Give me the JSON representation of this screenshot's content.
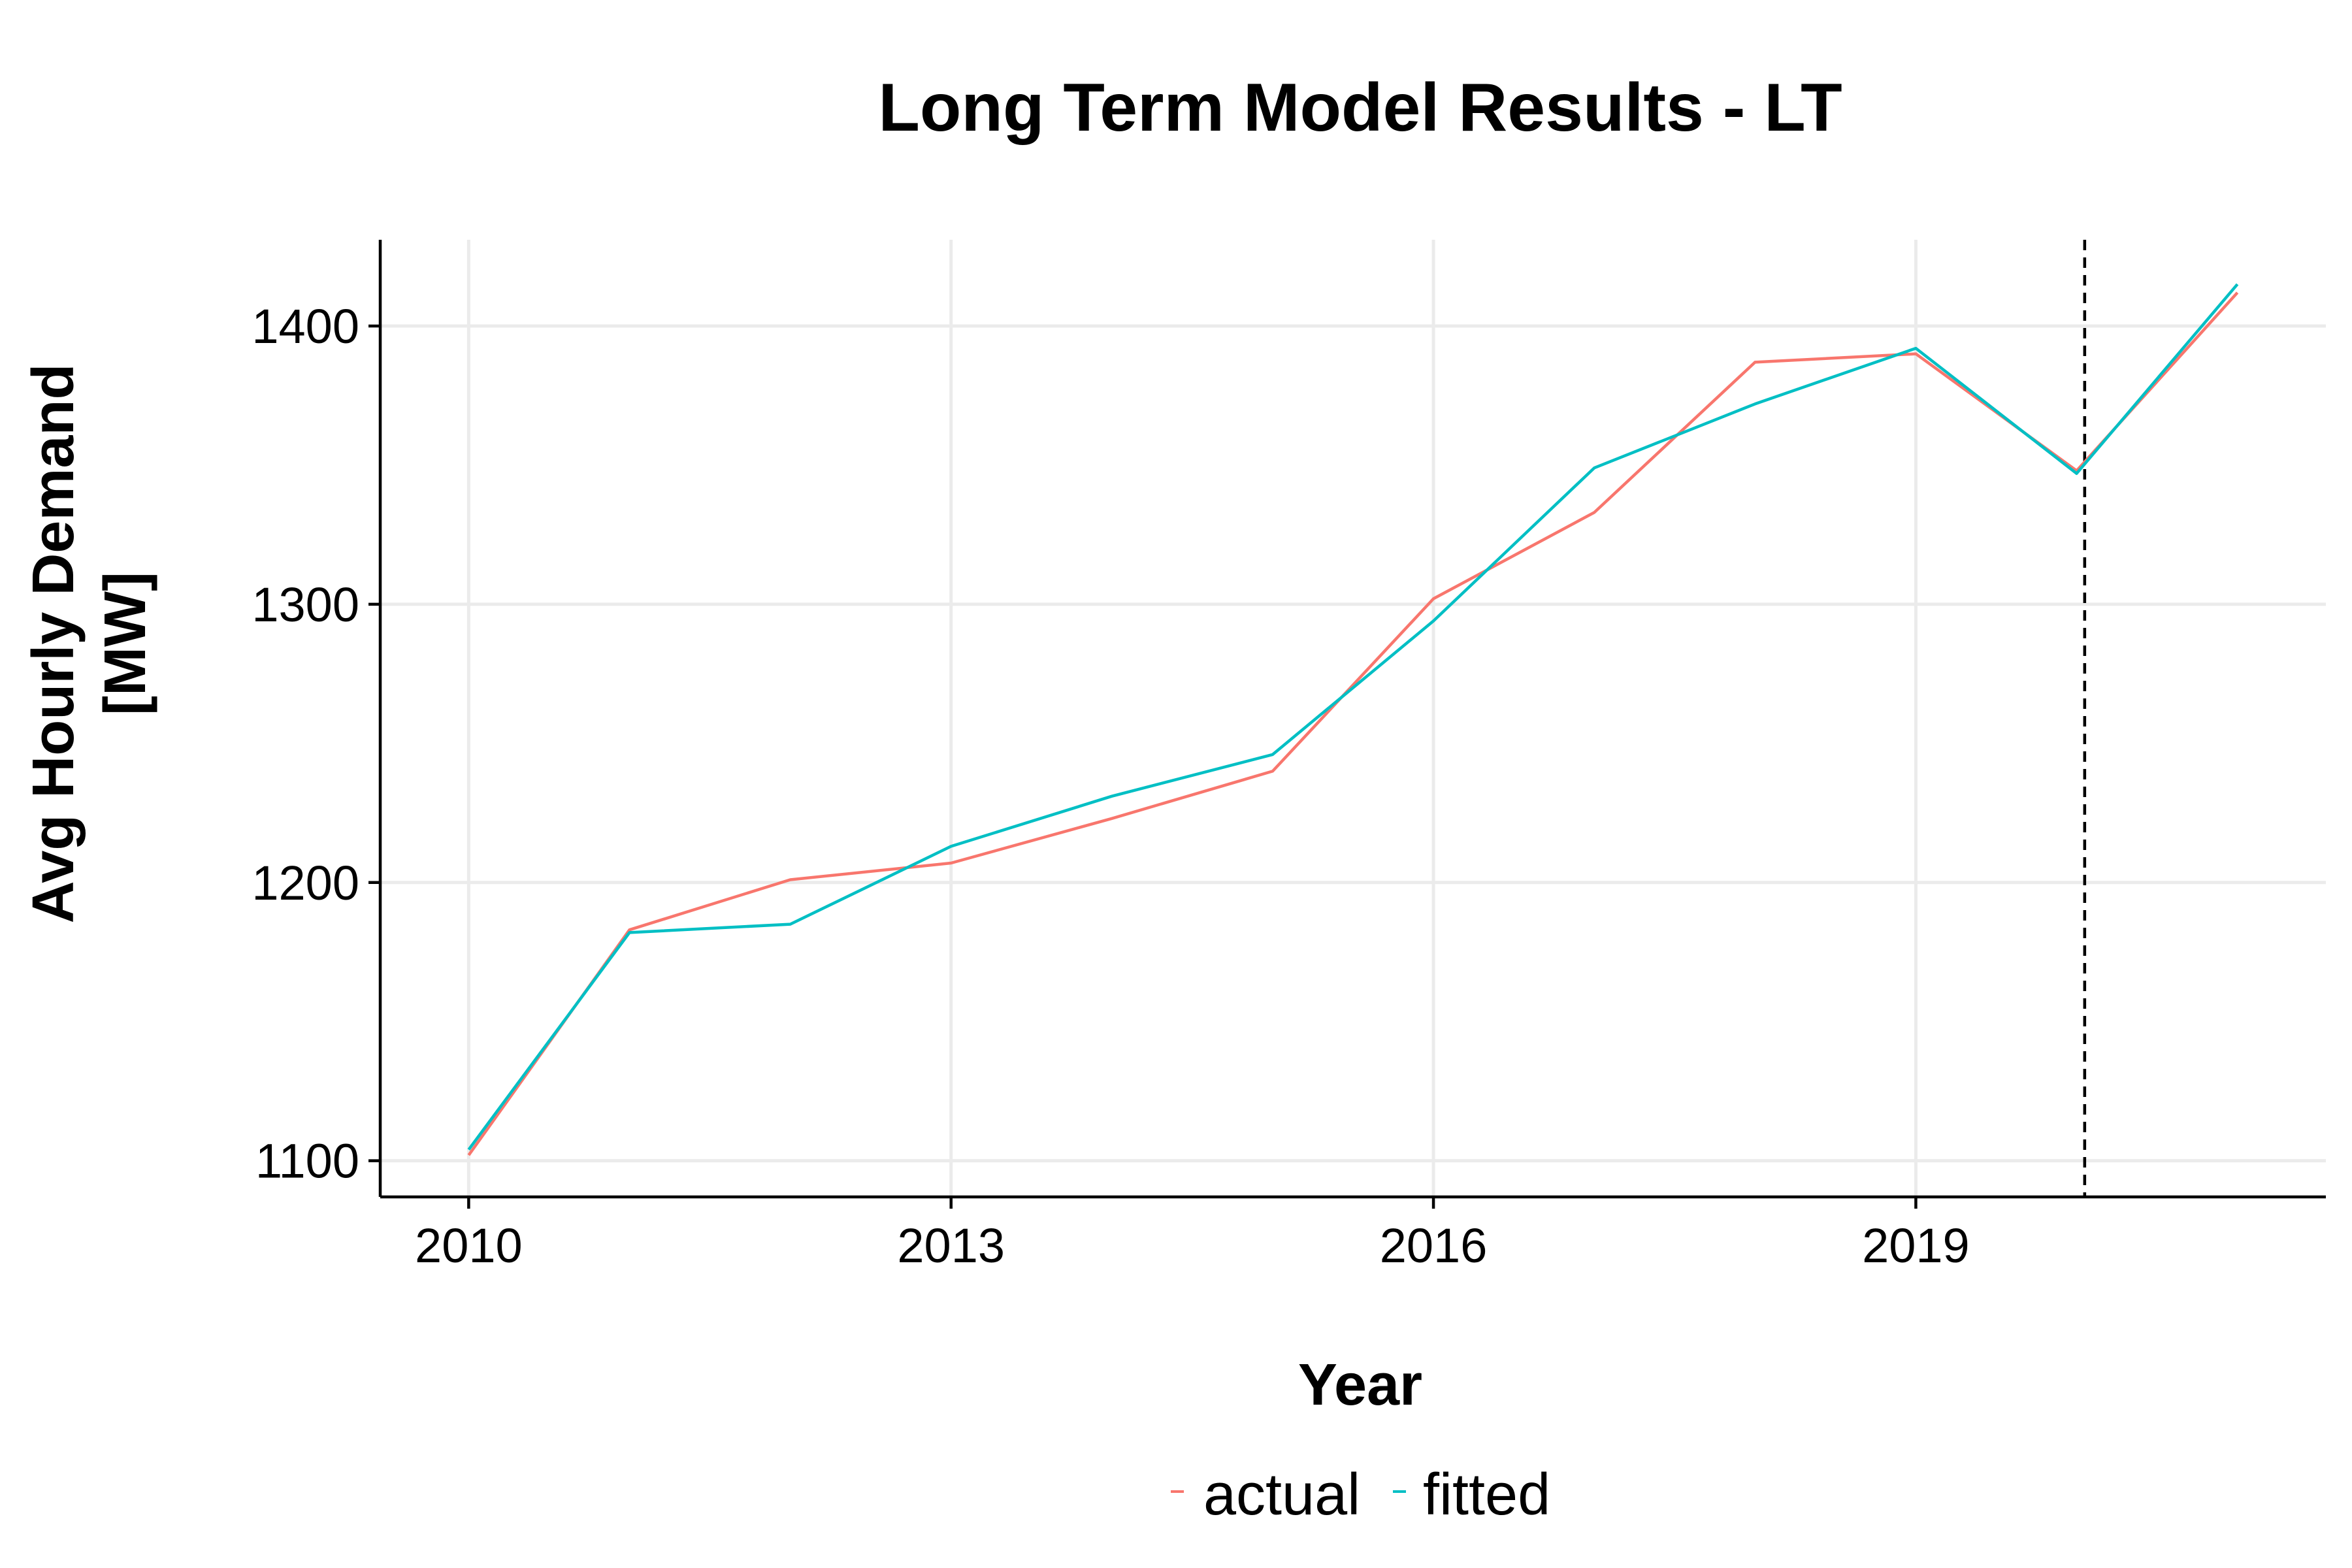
{
  "chart_data": {
    "type": "line",
    "title": "Long Term Model Results - LT",
    "xlabel": "Year",
    "ylabel_lines": [
      "Avg Hourly Demand",
      "[MW]"
    ],
    "xlim": [
      2009.45,
      2021.55
    ],
    "ylim": [
      1087,
      1431
    ],
    "x_ticks": [
      2010,
      2013,
      2016,
      2019
    ],
    "y_ticks": [
      1100,
      1200,
      1300,
      1400
    ],
    "x_tick_labels": [
      "2010",
      "2013",
      "2016",
      "2019"
    ],
    "y_tick_labels": [
      "1100",
      "1200",
      "1300",
      "1400"
    ],
    "vline_x": 2020.05,
    "x": [
      2010,
      2011,
      2012,
      2013,
      2014,
      2015,
      2016,
      2017,
      2018,
      2019,
      2020,
      2021
    ],
    "series": [
      {
        "name": "actual",
        "color": "#F8766D",
        "values": [
          1102,
          1183,
          1201,
          1207,
          1223,
          1240,
          1302,
          1333,
          1387,
          1390,
          1348,
          1412
        ]
      },
      {
        "name": "fitted",
        "color": "#00BFC4",
        "values": [
          1104,
          1182,
          1185,
          1213,
          1231,
          1246,
          1294,
          1349,
          1372,
          1392,
          1347,
          1415
        ]
      }
    ],
    "grid": true,
    "legend_position": "bottom"
  }
}
